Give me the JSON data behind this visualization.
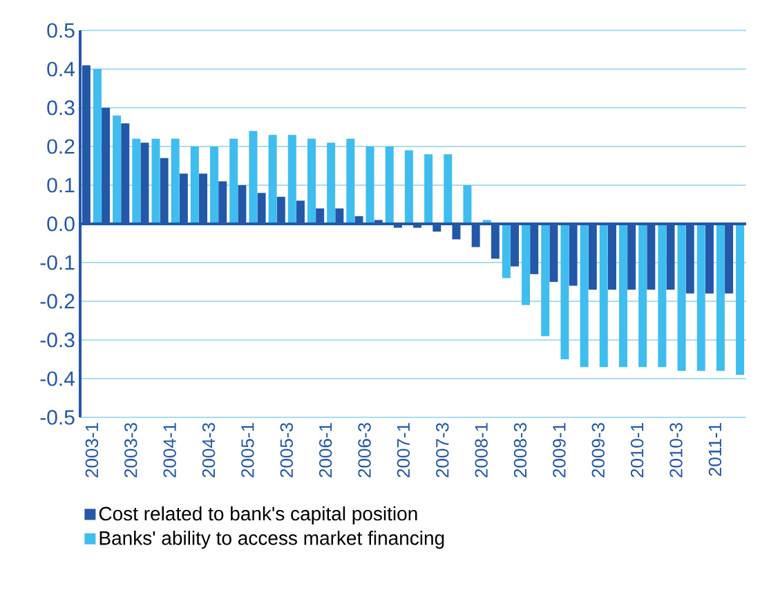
{
  "chart_data": {
    "type": "bar",
    "categories": [
      "2003-1",
      null,
      "2003-3",
      null,
      "2004-1",
      null,
      "2004-3",
      null,
      "2005-1",
      null,
      "2005-3",
      null,
      "2006-1",
      null,
      "2006-3",
      null,
      "2007-1",
      null,
      "2007-3",
      null,
      "2008-1",
      null,
      "2008-3",
      null,
      "2009-1",
      null,
      "2009-3",
      null,
      "2010-1",
      null,
      "2010-3",
      null,
      "2011-1",
      null
    ],
    "series": [
      {
        "name": "Cost related to bank's capital position",
        "color": "#2357a8",
        "values": [
          0.41,
          0.3,
          0.26,
          0.21,
          0.17,
          0.13,
          0.13,
          0.11,
          0.1,
          0.08,
          0.07,
          0.06,
          0.04,
          0.04,
          0.02,
          0.01,
          -0.01,
          -0.01,
          -0.02,
          -0.04,
          -0.06,
          -0.09,
          -0.11,
          -0.13,
          -0.15,
          -0.16,
          -0.17,
          -0.17,
          -0.17,
          -0.17,
          -0.17,
          -0.18,
          -0.18,
          -0.18
        ]
      },
      {
        "name": "Banks' ability to access market financing",
        "color": "#3fbdee",
        "values": [
          0.4,
          0.28,
          0.22,
          0.22,
          0.22,
          0.2,
          0.2,
          0.22,
          0.24,
          0.23,
          0.23,
          0.22,
          0.21,
          0.22,
          0.2,
          0.2,
          0.19,
          0.18,
          0.18,
          0.1,
          0.01,
          -0.14,
          -0.21,
          -0.29,
          -0.35,
          -0.37,
          -0.37,
          -0.37,
          -0.37,
          -0.37,
          -0.38,
          -0.38,
          -0.38,
          -0.39
        ]
      }
    ],
    "ylim": [
      -0.5,
      0.5
    ],
    "yticks": [
      {
        "value": -0.5,
        "label": "-0.5"
      },
      {
        "value": -0.4,
        "label": "-0.4"
      },
      {
        "value": -0.3,
        "label": "-0.3"
      },
      {
        "value": -0.2,
        "label": "-0.2"
      },
      {
        "value": -0.1,
        "label": "-0.1"
      },
      {
        "value": 0,
        "label": "0.0"
      },
      0.1,
      0.2,
      0.3,
      0.4,
      0.5
    ],
    "ref_lines": [
      {
        "axis": "y",
        "value": 0,
        "color": "#2357a8"
      }
    ],
    "grid": "y",
    "legend": "bottom"
  }
}
